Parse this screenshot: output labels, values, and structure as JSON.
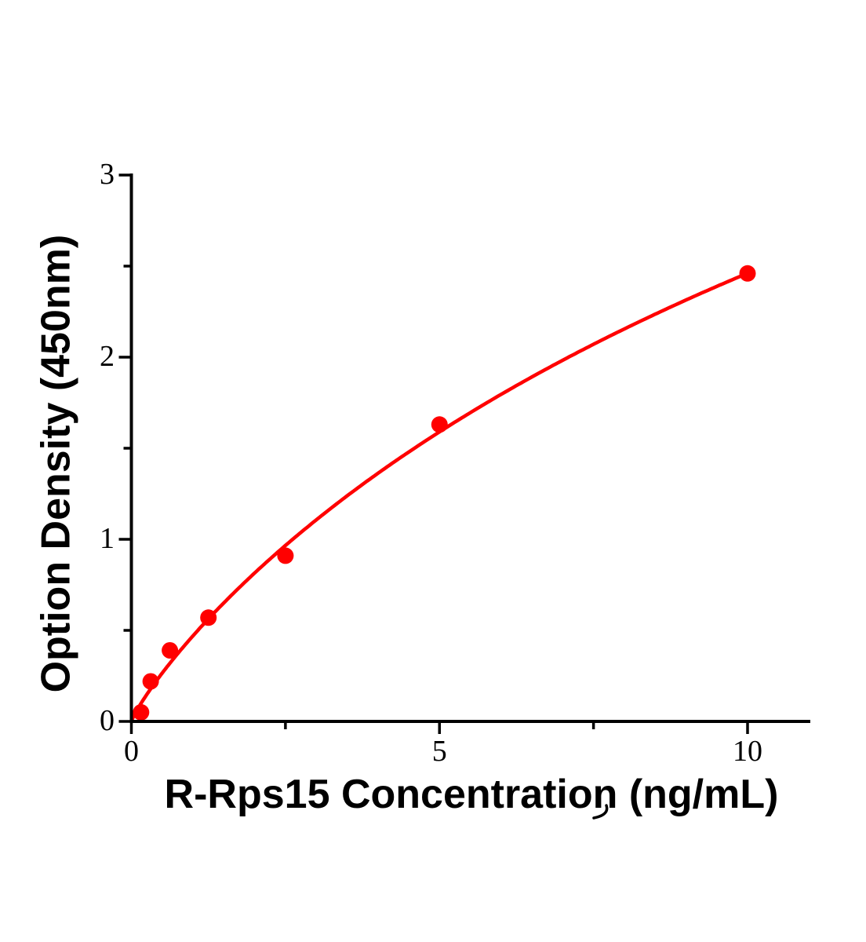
{
  "chart_data": {
    "type": "scatter",
    "title": "",
    "xlabel": "R-Rps15 Concentration (ng/mL)",
    "ylabel": "Option Density (450nm)",
    "x": [
      0.156,
      0.313,
      0.625,
      1.25,
      2.5,
      5,
      10
    ],
    "y": [
      0.05,
      0.22,
      0.39,
      0.57,
      0.91,
      1.63,
      2.46
    ],
    "xlim": [
      0,
      11
    ],
    "ylim": [
      0,
      3
    ],
    "x_major_ticks": [
      0,
      5,
      10
    ],
    "x_major_tick_labels": [
      "0",
      "5",
      "10"
    ],
    "x_minor_ticks": [
      2.5,
      7.5
    ],
    "y_major_ticks": [
      0,
      1,
      2,
      3
    ],
    "y_major_tick_labels": [
      "0",
      "1",
      "2",
      "3"
    ],
    "y_minor_ticks": [
      0.5,
      1.5,
      2.5
    ],
    "grid": false,
    "legend": "none",
    "marker_color": "#ff0000",
    "line_color": "#ff0000",
    "axis_color": "#000000",
    "fit_curve": {
      "model": "hill",
      "equation": "y = a*x^n / (b^n + x^n)",
      "a": 7.32,
      "b": 21.9,
      "n": 0.868,
      "x_start": 0,
      "x_end": 10
    }
  }
}
